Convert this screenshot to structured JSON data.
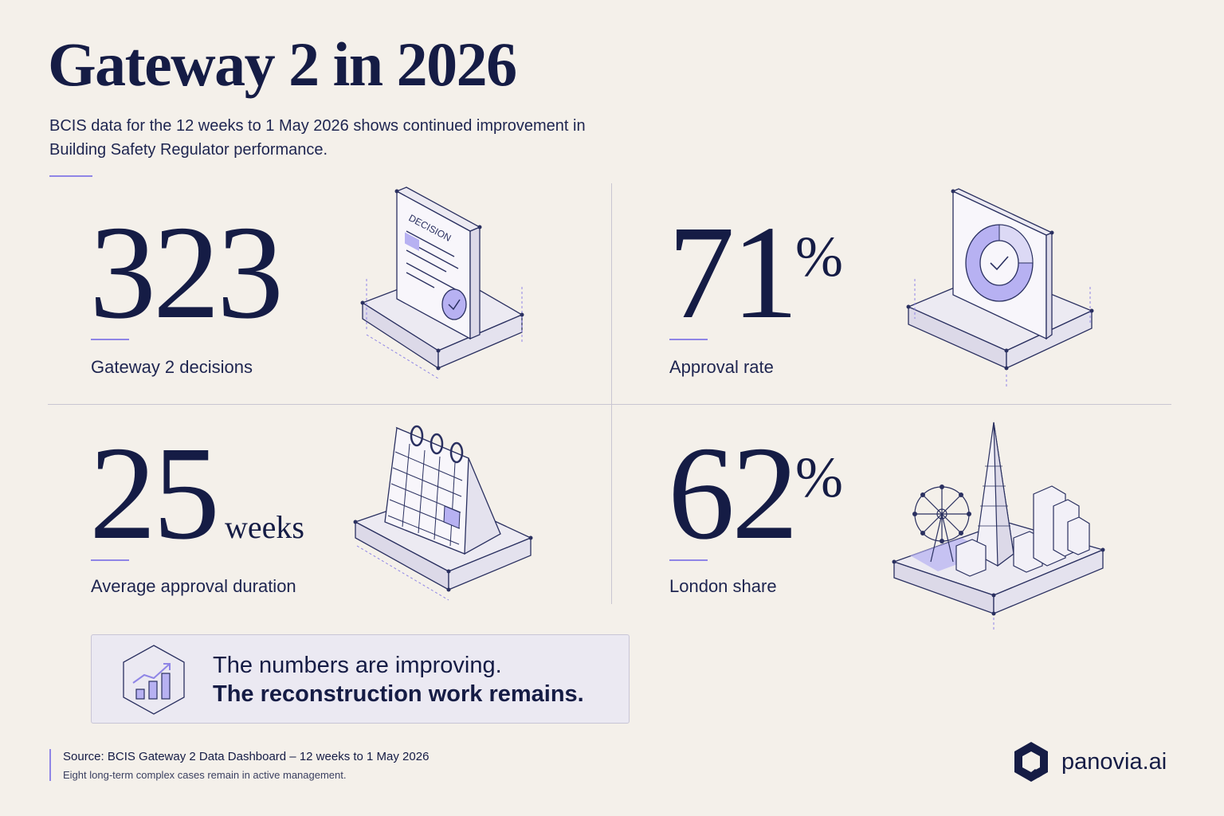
{
  "title": "Gateway 2 in 2026",
  "subtitle": "BCIS data for the 12 weeks to 1 May 2026 shows continued improvement in Building Safety Regulator performance.",
  "stats": [
    {
      "value": "323",
      "unit": "",
      "label": "Gateway 2 decisions",
      "icon": "decision-document-icon"
    },
    {
      "value": "71",
      "unit": "%",
      "label": "Approval rate",
      "icon": "approval-donut-icon"
    },
    {
      "value": "25",
      "unit": "weeks",
      "label": "Average approval duration",
      "icon": "calendar-icon"
    },
    {
      "value": "62",
      "unit": "%",
      "label": "London share",
      "icon": "london-skyline-icon"
    }
  ],
  "illustration_text": {
    "document_heading": "DECISION"
  },
  "callout": {
    "line1": "The numbers are improving.",
    "line2": "The reconstruction work remains.",
    "icon": "trend-chart-icon"
  },
  "source": {
    "line1": "Source: BCIS Gateway 2 Data Dashboard – 12 weeks to 1 May 2026",
    "line2": "Eight long-term complex cases remain in active management."
  },
  "brand": {
    "name": "panovia.ai",
    "icon": "panovia-logo-icon"
  },
  "colors": {
    "background": "#f4f0ea",
    "navy": "#151c45",
    "accent": "#8f85e6",
    "accent_light": "#b7b1f2"
  }
}
